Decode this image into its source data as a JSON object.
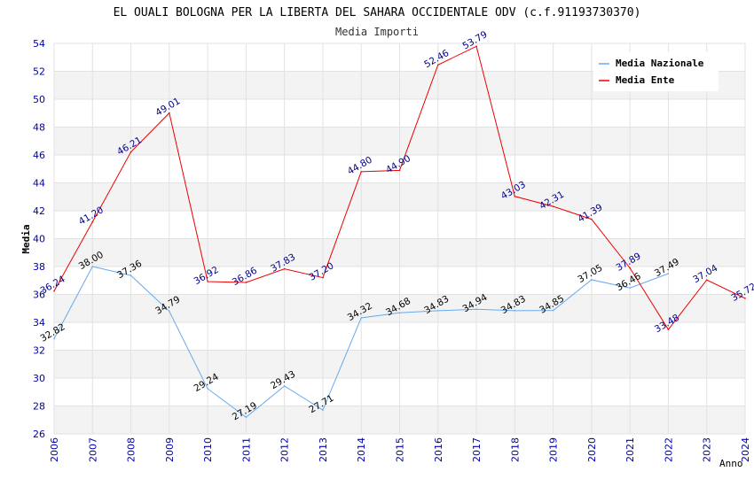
{
  "chart_data": {
    "type": "line",
    "title": "EL OUALI BOLOGNA PER LA LIBERTA DEL SAHARA OCCIDENTALE ODV (c.f.91193730370)",
    "subtitle": "Media Importi",
    "xlabel": "Anno",
    "ylabel": "Media",
    "ylim": [
      26,
      54
    ],
    "yticks": [
      "26",
      "28",
      "30",
      "32",
      "34",
      "36",
      "38",
      "40",
      "42",
      "44",
      "46",
      "48",
      "50",
      "52",
      "54"
    ],
    "categories": [
      "2006",
      "2007",
      "2008",
      "2009",
      "2010",
      "2011",
      "2012",
      "2013",
      "2014",
      "2015",
      "2016",
      "2017",
      "2018",
      "2019",
      "2020",
      "2021",
      "2022",
      "2023",
      "2024"
    ],
    "legend_position": "top-right",
    "grid": true,
    "series": [
      {
        "name": "Media Nazionale",
        "color": "#66aaee",
        "label_color": "#000000",
        "values": [
          32.82,
          38.0,
          37.36,
          34.79,
          29.24,
          27.19,
          29.43,
          27.71,
          34.32,
          34.68,
          34.83,
          34.94,
          34.83,
          34.85,
          37.05,
          36.46,
          37.49,
          null,
          null
        ],
        "labels": [
          "32.82",
          "38.00",
          "37.36",
          "34.79",
          "29.24",
          "27.19",
          "29.43",
          "27.71",
          "34.32",
          "34.68",
          "34.83",
          "34.94",
          "34.83",
          "34.85",
          "37.05",
          "36.46",
          "37.49",
          null,
          null
        ]
      },
      {
        "name": "Media Ente",
        "color": "#ee0000",
        "label_color": "#000088",
        "values": [
          36.24,
          41.2,
          46.21,
          49.01,
          36.92,
          36.86,
          37.83,
          37.2,
          44.8,
          44.9,
          52.46,
          53.79,
          43.03,
          42.31,
          41.39,
          37.89,
          33.48,
          37.04,
          35.72
        ],
        "labels": [
          "36.24",
          "41.20",
          "46.21",
          "49.01",
          "36.92",
          "36.86",
          "37.83",
          "37.20",
          "44.80",
          "44.90",
          "52.46",
          "53.79",
          "43.03",
          "42.31",
          "41.39",
          "37.89",
          "33.48",
          "37.04",
          "35.72"
        ]
      }
    ]
  }
}
